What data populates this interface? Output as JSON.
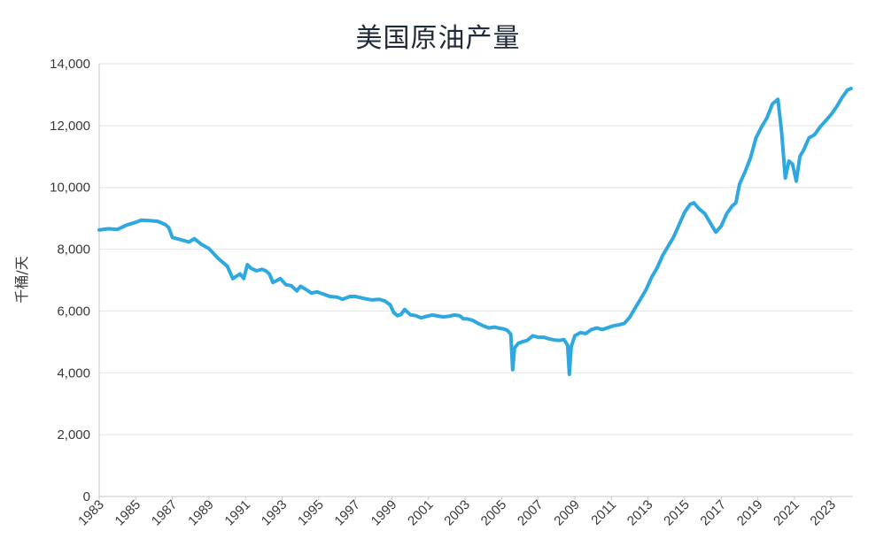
{
  "chart_data": {
    "type": "line",
    "title": "美国原油产量",
    "xlabel": "",
    "ylabel": "千桶/天",
    "ylim": [
      0,
      14000
    ],
    "xlim": [
      1983.0,
      2024.2
    ],
    "y_ticks": [
      0,
      2000,
      4000,
      6000,
      8000,
      10000,
      12000,
      14000
    ],
    "y_tick_labels": [
      "0",
      "2,000",
      "4,000",
      "6,000",
      "8,000",
      "10,000",
      "12,000",
      "14,000"
    ],
    "x_ticks": [
      1983,
      1985,
      1987,
      1989,
      1991,
      1993,
      1995,
      1997,
      1999,
      2001,
      2003,
      2005,
      2007,
      2009,
      2011,
      2013,
      2015,
      2017,
      2019,
      2021,
      2023
    ],
    "x_tick_labels": [
      "1983",
      "1985",
      "1987",
      "1989",
      "1991",
      "1993",
      "1995",
      "1997",
      "1999",
      "2001",
      "2003",
      "2005",
      "2007",
      "2009",
      "2011",
      "2013",
      "2015",
      "2017",
      "2019",
      "2021",
      "2023"
    ],
    "grid": "horizontal",
    "line_color": "#2ea8df",
    "series": [
      {
        "values": [
          [
            1983.0,
            8620
          ],
          [
            1983.5,
            8660
          ],
          [
            1984.0,
            8640
          ],
          [
            1984.5,
            8780
          ],
          [
            1985.0,
            8870
          ],
          [
            1985.3,
            8940
          ],
          [
            1985.8,
            8920
          ],
          [
            1986.2,
            8900
          ],
          [
            1986.6,
            8800
          ],
          [
            1986.8,
            8700
          ],
          [
            1987.0,
            8380
          ],
          [
            1987.5,
            8300
          ],
          [
            1987.9,
            8230
          ],
          [
            1988.2,
            8340
          ],
          [
            1988.6,
            8150
          ],
          [
            1989.0,
            8020
          ],
          [
            1989.5,
            7700
          ],
          [
            1990.0,
            7450
          ],
          [
            1990.3,
            7050
          ],
          [
            1990.7,
            7200
          ],
          [
            1990.9,
            7050
          ],
          [
            1991.1,
            7500
          ],
          [
            1991.3,
            7380
          ],
          [
            1991.6,
            7300
          ],
          [
            1991.9,
            7350
          ],
          [
            1992.1,
            7300
          ],
          [
            1992.3,
            7200
          ],
          [
            1992.5,
            6920
          ],
          [
            1992.9,
            7050
          ],
          [
            1993.2,
            6850
          ],
          [
            1993.5,
            6820
          ],
          [
            1993.8,
            6650
          ],
          [
            1994.0,
            6800
          ],
          [
            1994.3,
            6700
          ],
          [
            1994.6,
            6580
          ],
          [
            1994.9,
            6620
          ],
          [
            1995.3,
            6540
          ],
          [
            1995.6,
            6470
          ],
          [
            1996.0,
            6450
          ],
          [
            1996.3,
            6380
          ],
          [
            1996.7,
            6470
          ],
          [
            1997.0,
            6470
          ],
          [
            1997.3,
            6430
          ],
          [
            1997.6,
            6390
          ],
          [
            1997.9,
            6360
          ],
          [
            1998.3,
            6380
          ],
          [
            1998.6,
            6330
          ],
          [
            1998.9,
            6200
          ],
          [
            1999.1,
            5950
          ],
          [
            1999.3,
            5850
          ],
          [
            1999.5,
            5890
          ],
          [
            1999.7,
            6050
          ],
          [
            2000.0,
            5880
          ],
          [
            2000.3,
            5850
          ],
          [
            2000.6,
            5780
          ],
          [
            2000.9,
            5830
          ],
          [
            2001.2,
            5870
          ],
          [
            2001.5,
            5840
          ],
          [
            2001.8,
            5810
          ],
          [
            2002.1,
            5830
          ],
          [
            2002.4,
            5870
          ],
          [
            2002.7,
            5850
          ],
          [
            2002.9,
            5750
          ],
          [
            2003.1,
            5750
          ],
          [
            2003.4,
            5700
          ],
          [
            2003.7,
            5600
          ],
          [
            2004.0,
            5520
          ],
          [
            2004.3,
            5450
          ],
          [
            2004.6,
            5480
          ],
          [
            2004.9,
            5440
          ],
          [
            2005.1,
            5420
          ],
          [
            2005.3,
            5380
          ],
          [
            2005.5,
            5250
          ],
          [
            2005.6,
            4100
          ],
          [
            2005.7,
            4800
          ],
          [
            2005.9,
            4950
          ],
          [
            2006.1,
            5000
          ],
          [
            2006.4,
            5050
          ],
          [
            2006.7,
            5200
          ],
          [
            2007.0,
            5150
          ],
          [
            2007.3,
            5150
          ],
          [
            2007.6,
            5100
          ],
          [
            2007.9,
            5060
          ],
          [
            2008.2,
            5050
          ],
          [
            2008.4,
            5080
          ],
          [
            2008.6,
            4900
          ],
          [
            2008.7,
            3950
          ],
          [
            2008.8,
            4850
          ],
          [
            2009.0,
            5200
          ],
          [
            2009.3,
            5300
          ],
          [
            2009.6,
            5270
          ],
          [
            2009.9,
            5400
          ],
          [
            2010.2,
            5450
          ],
          [
            2010.5,
            5400
          ],
          [
            2010.8,
            5460
          ],
          [
            2011.1,
            5520
          ],
          [
            2011.4,
            5550
          ],
          [
            2011.7,
            5600
          ],
          [
            2012.0,
            5800
          ],
          [
            2012.3,
            6100
          ],
          [
            2012.6,
            6400
          ],
          [
            2012.9,
            6700
          ],
          [
            2013.2,
            7100
          ],
          [
            2013.5,
            7400
          ],
          [
            2013.8,
            7800
          ],
          [
            2014.1,
            8100
          ],
          [
            2014.4,
            8400
          ],
          [
            2014.7,
            8800
          ],
          [
            2015.0,
            9200
          ],
          [
            2015.3,
            9450
          ],
          [
            2015.5,
            9500
          ],
          [
            2015.8,
            9300
          ],
          [
            2016.1,
            9150
          ],
          [
            2016.4,
            8850
          ],
          [
            2016.7,
            8550
          ],
          [
            2017.0,
            8750
          ],
          [
            2017.3,
            9150
          ],
          [
            2017.6,
            9400
          ],
          [
            2017.8,
            9500
          ],
          [
            2018.0,
            10100
          ],
          [
            2018.3,
            10500
          ],
          [
            2018.6,
            10950
          ],
          [
            2018.9,
            11600
          ],
          [
            2019.2,
            11950
          ],
          [
            2019.5,
            12250
          ],
          [
            2019.8,
            12700
          ],
          [
            2020.1,
            12850
          ],
          [
            2020.3,
            11800
          ],
          [
            2020.5,
            10300
          ],
          [
            2020.7,
            10850
          ],
          [
            2020.9,
            10750
          ],
          [
            2021.1,
            10200
          ],
          [
            2021.3,
            11000
          ],
          [
            2021.5,
            11200
          ],
          [
            2021.8,
            11600
          ],
          [
            2022.1,
            11700
          ],
          [
            2022.4,
            11950
          ],
          [
            2022.7,
            12150
          ],
          [
            2023.0,
            12350
          ],
          [
            2023.3,
            12600
          ],
          [
            2023.6,
            12900
          ],
          [
            2023.9,
            13150
          ],
          [
            2024.1,
            13200
          ]
        ]
      }
    ]
  }
}
